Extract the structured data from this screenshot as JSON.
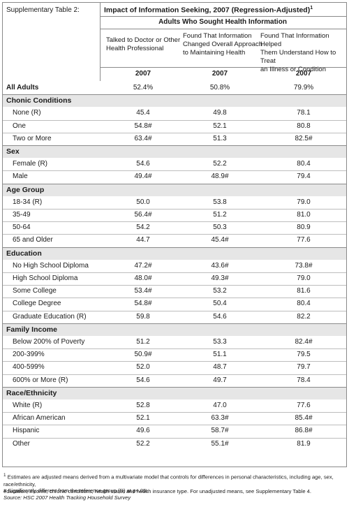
{
  "header": {
    "table_label": "Supplementary Table 2:",
    "title": "Impact of Information Seeking, 2007 (Regression-Adjusted)",
    "title_sup": "1"
  },
  "group_heading": "Adults Who Sought Health Information",
  "columns": [
    {
      "line1": "Talked to Doctor or Other",
      "line2": "Health Professional",
      "line3": "",
      "year": "2007"
    },
    {
      "line1": "Found That Information",
      "line2": "Changed Overall Approach",
      "line3": "to Maintaining Health",
      "year": "2007"
    },
    {
      "line1": "Found That Information Helped",
      "line2": "Them Understand How to Treat",
      "line3": "an Illness or Condition",
      "year": "2007"
    }
  ],
  "all_adults": {
    "label": "All Adults",
    "values": [
      "52.4%",
      "50.8%",
      "79.9%"
    ]
  },
  "sections": [
    {
      "title": "Chonic Conditions",
      "rows": [
        {
          "label": "None (R)",
          "values": [
            "45.4",
            "49.8",
            "78.1"
          ]
        },
        {
          "label": "One",
          "values": [
            "54.8#",
            "52.1",
            "80.8"
          ]
        },
        {
          "label": "Two or More",
          "values": [
            "63.4#",
            "51.3",
            "82.5#"
          ]
        }
      ]
    },
    {
      "title": "Sex",
      "rows": [
        {
          "label": "Female (R)",
          "values": [
            "54.6",
            "52.2",
            "80.4"
          ]
        },
        {
          "label": "Male",
          "values": [
            "49.4#",
            "48.9#",
            "79.4"
          ]
        }
      ]
    },
    {
      "title": "Age Group",
      "rows": [
        {
          "label": "18-34 (R)",
          "values": [
            "50.0",
            "53.8",
            "79.0"
          ]
        },
        {
          "label": "35-49",
          "values": [
            "56.4#",
            "51.2",
            "81.0"
          ]
        },
        {
          "label": "50-64",
          "values": [
            "54.2",
            "50.3",
            "80.9"
          ]
        },
        {
          "label": "65 and Older",
          "values": [
            "44.7",
            "45.4#",
            "77.6"
          ]
        }
      ]
    },
    {
      "title": "Education",
      "rows": [
        {
          "label": "No High School Diploma",
          "values": [
            "47.2#",
            "43.6#",
            "73.8#"
          ]
        },
        {
          "label": "High School Diploma",
          "values": [
            "48.0#",
            "49.3#",
            "79.0"
          ]
        },
        {
          "label": "Some College",
          "values": [
            "53.4#",
            "53.2",
            "81.6"
          ]
        },
        {
          "label": "College Degree",
          "values": [
            "54.8#",
            "50.4",
            "80.4"
          ]
        },
        {
          "label": "Graduate Education (R)",
          "values": [
            "59.8",
            "54.6",
            "82.2"
          ]
        }
      ]
    },
    {
      "title": "Family Income",
      "rows": [
        {
          "label": "Below 200% of Poverty",
          "values": [
            "51.2",
            "53.3",
            "82.4#"
          ]
        },
        {
          "label": "200-399%",
          "values": [
            "50.9#",
            "51.1",
            "79.5"
          ]
        },
        {
          "label": "400-599%",
          "values": [
            "52.0",
            "48.7",
            "79.7"
          ]
        },
        {
          "label": "600% or More (R)",
          "values": [
            "54.6",
            "49.7",
            "78.4"
          ]
        }
      ]
    },
    {
      "title": "Race/Ethnicity",
      "rows": [
        {
          "label": "White (R)",
          "values": [
            "52.8",
            "47.0",
            "77.6"
          ]
        },
        {
          "label": "African American",
          "values": [
            "52.1",
            "63.3#",
            "85.4#"
          ]
        },
        {
          "label": "Hispanic",
          "values": [
            "49.6",
            "58.7#",
            "86.8#"
          ]
        },
        {
          "label": "Other",
          "values": [
            "52.2",
            "55.1#",
            "81.9"
          ]
        }
      ]
    }
  ],
  "footnotes": {
    "note1_sup": "1",
    "note1_line1": "Estimates are adjusted means derived from a multivariate model that controls for differences in personal characteristics, including age, sex, race/ethnicity,",
    "note1_line2": "education, income, chronic conditions, health status and health insurance type. For unadjusted means, see Supplementary Table 4.",
    "note2": "# Significantly different from the reference group (R) at p<.05.",
    "source": "Source: HSC 2007 Health Tracking Household Survey"
  }
}
